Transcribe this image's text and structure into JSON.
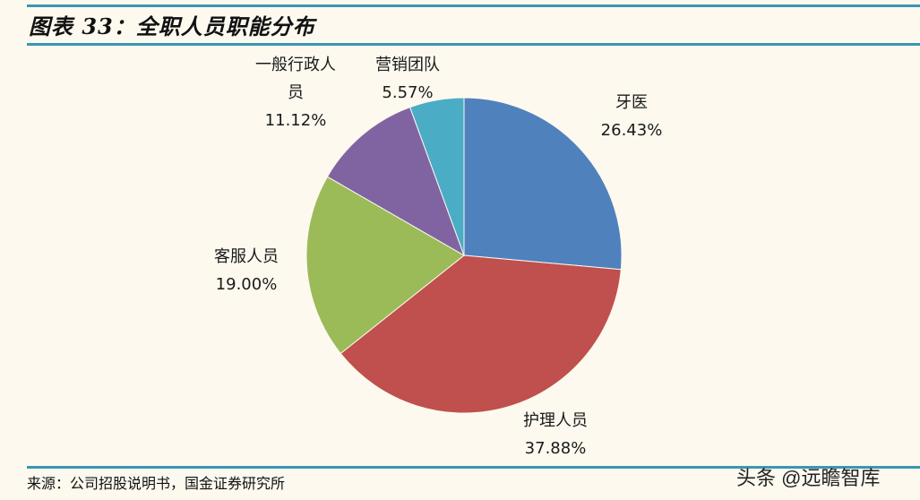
{
  "header": {
    "title": "图表 33：全职人员职能分布"
  },
  "footer": {
    "source": "来源：公司招股说明书，国金证券研究所",
    "watermark": "头条 @远瞻智库"
  },
  "labels": [
    {
      "name": "牙医",
      "pct": "26.43%"
    },
    {
      "name": "护理人员",
      "pct": "37.88%"
    },
    {
      "name": "客服人员",
      "pct": "19.00%"
    },
    {
      "name_line1": "一般行政人",
      "name_line2": "员",
      "pct": "11.12%"
    },
    {
      "name": "营销团队",
      "pct": "5.57%"
    }
  ],
  "chart_data": {
    "type": "pie",
    "title": "图表 33：全职人员职能分布",
    "categories": [
      "牙医",
      "护理人员",
      "客服人员",
      "一般行政人员",
      "营销团队"
    ],
    "values": [
      26.43,
      37.88,
      19.0,
      11.12,
      5.57
    ],
    "colors": [
      "#4f81bd",
      "#c0504d",
      "#9bbb59",
      "#8064a2",
      "#4bacc6"
    ],
    "start_angle": "12 o'clock, clockwise",
    "legend": "none (data labels outside slices)"
  }
}
